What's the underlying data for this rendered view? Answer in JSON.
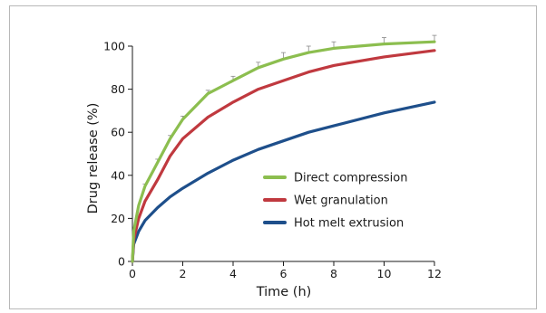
{
  "chart_data": {
    "type": "line",
    "title": "",
    "xlabel": "Time (h)",
    "ylabel": "Drug release (%)",
    "xlim": [
      0,
      12
    ],
    "ylim": [
      0,
      100
    ],
    "xticks": [
      0,
      2,
      4,
      6,
      8,
      10,
      12
    ],
    "yticks": [
      0,
      20,
      40,
      60,
      80,
      100
    ],
    "grid": false,
    "legend_position": "center-right",
    "series": [
      {
        "name": "Direct compression",
        "color": "#8cbe4f",
        "x": [
          0,
          0.05,
          0.25,
          0.5,
          1,
          1.5,
          2,
          3,
          4,
          5,
          6,
          7,
          8,
          10,
          12
        ],
        "y": [
          0,
          14,
          26,
          35,
          46,
          57,
          66,
          78,
          84,
          90,
          94,
          97,
          99,
          101,
          102
        ],
        "error": [
          0,
          0,
          0,
          1,
          1.5,
          1.5,
          1.5,
          1.5,
          2,
          2.5,
          3,
          3,
          3,
          3,
          3
        ]
      },
      {
        "name": "Wet granulation",
        "color": "#c0393f",
        "x": [
          0,
          0.05,
          0.25,
          0.5,
          1,
          1.5,
          2,
          3,
          4,
          5,
          6,
          7,
          8,
          10,
          12
        ],
        "y": [
          0,
          10,
          20,
          28,
          38,
          49,
          57,
          67,
          74,
          80,
          84,
          88,
          91,
          95,
          98
        ]
      },
      {
        "name": "Hot melt extrusion",
        "color": "#1e4f8b",
        "x": [
          0,
          0.05,
          0.25,
          0.5,
          1,
          1.5,
          2,
          3,
          4,
          5,
          6,
          7,
          8,
          10,
          12
        ],
        "y": [
          0,
          8,
          14,
          19,
          25,
          30,
          34,
          41,
          47,
          52,
          56,
          60,
          63,
          69,
          74
        ]
      }
    ]
  }
}
